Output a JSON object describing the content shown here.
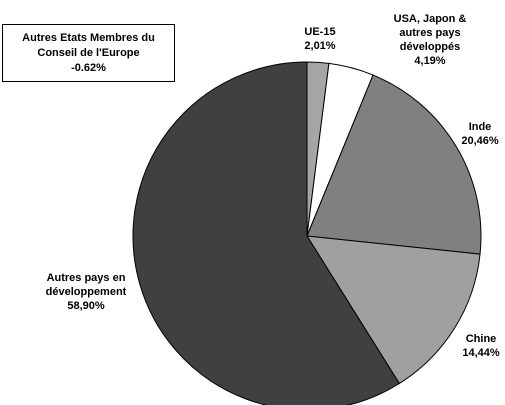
{
  "chart_data": {
    "type": "pie",
    "slices": [
      {
        "label_lines": [
          "UE-15",
          "2,01%"
        ],
        "value": 2.01,
        "color": "#a6a6a6"
      },
      {
        "label_lines": [
          "USA, Japon &",
          "autres pays",
          "développés",
          "4,19%"
        ],
        "value": 4.19,
        "color": "#ffffff"
      },
      {
        "label_lines": [
          "Inde",
          "20,46%"
        ],
        "value": 20.46,
        "color": "#808080"
      },
      {
        "label_lines": [
          "Chine",
          "14,44%"
        ],
        "value": 14.44,
        "color": "#a0a0a0"
      },
      {
        "label_lines": [
          "Autres pays en",
          "développement",
          "58,90%"
        ],
        "value": 58.9,
        "color": "#404040"
      }
    ],
    "note": {
      "lines": [
        "Autres Etats Membres du",
        "Conseil de l'Europe",
        "-0.62%"
      ],
      "value": -0.62
    }
  }
}
